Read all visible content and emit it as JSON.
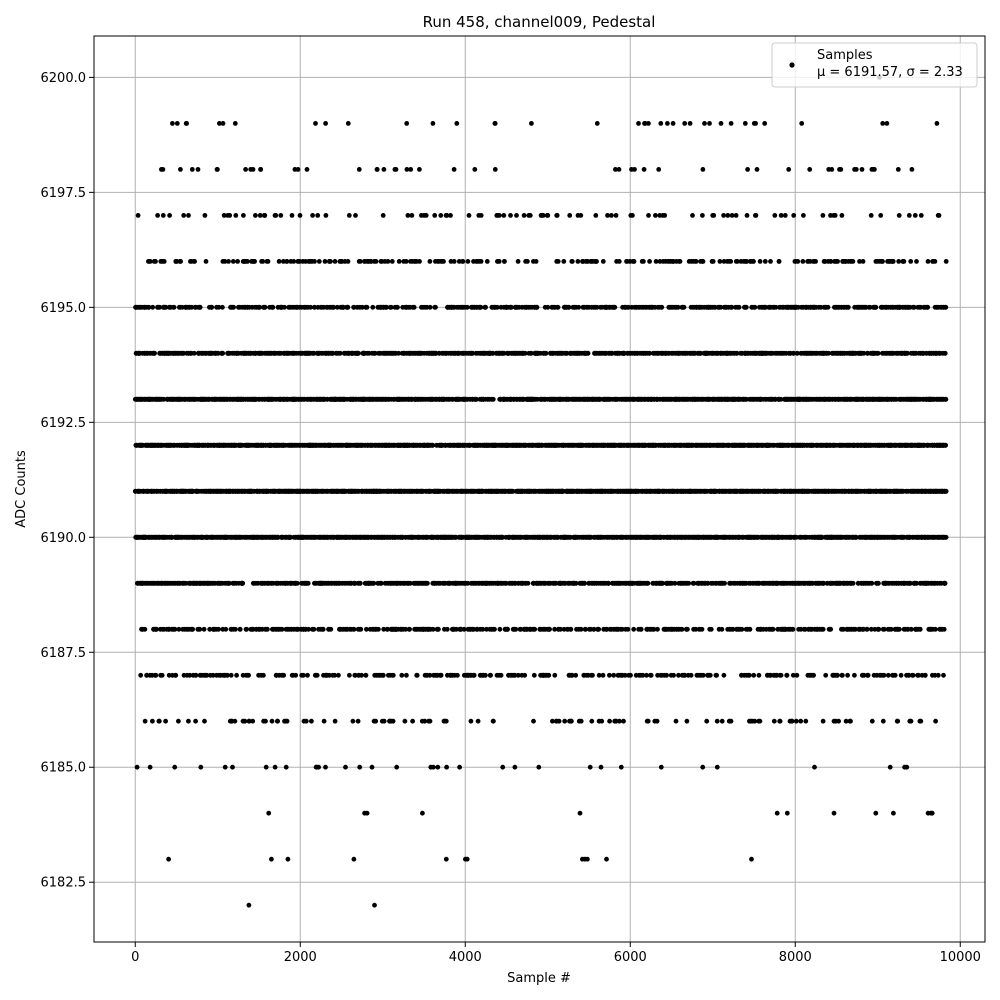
{
  "chart_data": {
    "type": "scatter",
    "title": "Run 458, channel009, Pedestal",
    "xlabel": "Sample #",
    "ylabel": "ADC Counts",
    "xlim": [
      -500,
      10300
    ],
    "ylim": [
      6181.2,
      6200.9
    ],
    "grid": true,
    "legend_placement": "top-right",
    "marker_color": "#000000",
    "x_ticks": [
      0,
      2000,
      4000,
      6000,
      8000,
      10000
    ],
    "x_tick_labels": [
      "0",
      "2000",
      "4000",
      "6000",
      "8000",
      "10000"
    ],
    "y_ticks": [
      6182.5,
      6185.0,
      6187.5,
      6190.0,
      6192.5,
      6195.0,
      6197.5,
      6200.0
    ],
    "y_tick_labels": [
      "6182.5",
      "6185.0",
      "6187.5",
      "6190.0",
      "6192.5",
      "6195.0",
      "6197.5",
      "6200.0"
    ],
    "legend": {
      "label": "Samples",
      "stats": "μ = 6191.57, σ = 2.33",
      "mu": 6191.57,
      "sigma": 2.33
    },
    "series": [
      {
        "name": "Samples",
        "x_range": [
          0,
          9830
        ],
        "count": 9831,
        "levels": [
          6182,
          6183,
          6184,
          6185,
          6186,
          6187,
          6188,
          6189,
          6190,
          6191,
          6192,
          6193,
          6194,
          6195,
          6196,
          6197,
          6198,
          6199
        ],
        "level_probabilities": [
          0.00015,
          0.0007,
          0.0008,
          0.004,
          0.013,
          0.03,
          0.045,
          0.085,
          0.15,
          0.175,
          0.17,
          0.14,
          0.09,
          0.055,
          0.025,
          0.012,
          0.004,
          0.002
        ],
        "isolated_points": [
          {
            "x": 2900,
            "y": 6182
          },
          {
            "x": 1650,
            "y": 6183
          },
          {
            "x": 1850,
            "y": 6183
          },
          {
            "x": 2650,
            "y": 6183
          },
          {
            "x": 3770,
            "y": 6183
          },
          {
            "x": 5420,
            "y": 6183
          },
          {
            "x": 5450,
            "y": 6183
          },
          {
            "x": 5480,
            "y": 6183
          },
          {
            "x": 2780,
            "y": 6184
          },
          {
            "x": 2810,
            "y": 6184
          },
          {
            "x": 3480,
            "y": 6184
          },
          {
            "x": 8470,
            "y": 6184
          },
          {
            "x": 9190,
            "y": 6184
          },
          {
            "x": 9610,
            "y": 6184
          },
          {
            "x": 9660,
            "y": 6184
          },
          {
            "x": 450,
            "y": 6199
          },
          {
            "x": 510,
            "y": 6199
          },
          {
            "x": 1020,
            "y": 6199
          },
          {
            "x": 5600,
            "y": 6199
          },
          {
            "x": 6100,
            "y": 6199
          },
          {
            "x": 6180,
            "y": 6199
          },
          {
            "x": 6220,
            "y": 6199
          },
          {
            "x": 6370,
            "y": 6199
          },
          {
            "x": 6450,
            "y": 6199
          },
          {
            "x": 6520,
            "y": 6199
          },
          {
            "x": 6660,
            "y": 6199
          },
          {
            "x": 6900,
            "y": 6199
          },
          {
            "x": 6960,
            "y": 6199
          },
          {
            "x": 7100,
            "y": 6199
          },
          {
            "x": 7520,
            "y": 6199
          },
          {
            "x": 9060,
            "y": 6199
          },
          {
            "x": 9020,
            "y": 6200
          }
        ]
      }
    ]
  }
}
